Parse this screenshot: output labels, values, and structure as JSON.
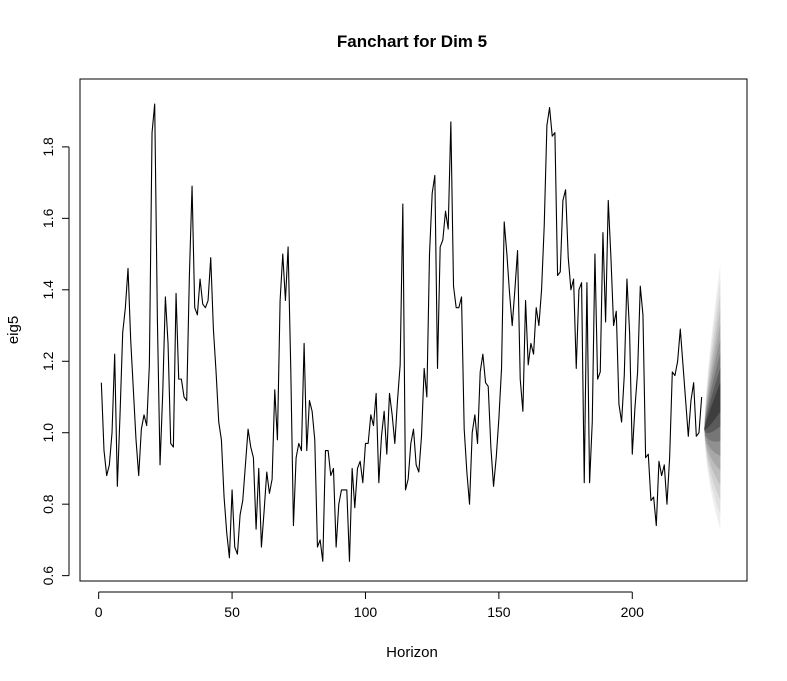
{
  "chart_data": {
    "type": "line",
    "title": "Fanchart for Dim 5",
    "xlabel": "Horizon",
    "ylabel": "eig5",
    "xlim": [
      -7,
      243
    ],
    "ylim": [
      0.585,
      1.99
    ],
    "x_ticks": [
      0,
      50,
      100,
      150,
      200
    ],
    "y_ticks": [
      0.6,
      0.8,
      1.0,
      1.2,
      1.4,
      1.6,
      1.8
    ],
    "x_tick_labels": [
      "0",
      "50",
      "100",
      "150",
      "200"
    ],
    "y_tick_labels": [
      "0.6",
      "0.8",
      "1.0",
      "1.2",
      "1.4",
      "1.6",
      "1.8"
    ],
    "grid": false,
    "series": [
      {
        "color": "#000000",
        "x_start": 1,
        "values": [
          1.14,
          0.95,
          0.88,
          0.91,
          1.0,
          1.22,
          0.85,
          1.05,
          1.28,
          1.35,
          1.46,
          1.26,
          1.12,
          0.98,
          0.88,
          1.01,
          1.05,
          1.02,
          1.19,
          1.84,
          1.92,
          1.32,
          0.91,
          1.11,
          1.38,
          1.25,
          0.97,
          0.96,
          1.39,
          1.15,
          1.15,
          1.1,
          1.09,
          1.44,
          1.69,
          1.35,
          1.33,
          1.43,
          1.36,
          1.35,
          1.37,
          1.49,
          1.29,
          1.17,
          1.03,
          0.98,
          0.82,
          0.72,
          0.65,
          0.84,
          0.68,
          0.66,
          0.77,
          0.81,
          0.91,
          1.01,
          0.96,
          0.93,
          0.73,
          0.9,
          0.68,
          0.78,
          0.89,
          0.83,
          0.87,
          1.12,
          0.98,
          1.37,
          1.5,
          1.37,
          1.52,
          1.18,
          0.74,
          0.93,
          0.97,
          0.95,
          1.25,
          0.95,
          1.09,
          1.06,
          0.98,
          0.68,
          0.7,
          0.64,
          0.95,
          0.95,
          0.88,
          0.9,
          0.68,
          0.8,
          0.84,
          0.84,
          0.84,
          0.64,
          0.9,
          0.79,
          0.9,
          0.92,
          0.86,
          0.97,
          0.97,
          1.05,
          1.02,
          1.11,
          0.86,
          0.99,
          1.06,
          0.94,
          1.11,
          1.05,
          0.97,
          1.09,
          1.19,
          1.64,
          0.84,
          0.87,
          0.97,
          1.01,
          0.91,
          0.89,
          0.99,
          1.18,
          1.1,
          1.5,
          1.67,
          1.72,
          1.18,
          1.52,
          1.54,
          1.62,
          1.57,
          1.87,
          1.41,
          1.35,
          1.35,
          1.38,
          1.01,
          0.89,
          0.8,
          1.0,
          1.05,
          0.97,
          1.17,
          1.22,
          1.14,
          1.13,
          0.96,
          0.85,
          0.93,
          1.04,
          1.18,
          1.59,
          1.5,
          1.39,
          1.3,
          1.4,
          1.51,
          1.15,
          1.06,
          1.37,
          1.19,
          1.25,
          1.22,
          1.35,
          1.3,
          1.4,
          1.58,
          1.86,
          1.91,
          1.83,
          1.84,
          1.44,
          1.45,
          1.65,
          1.68,
          1.49,
          1.4,
          1.43,
          1.18,
          1.4,
          1.42,
          0.86,
          1.42,
          0.86,
          1.03,
          1.5,
          1.15,
          1.17,
          1.56,
          1.31,
          1.65,
          1.49,
          1.3,
          1.34,
          1.08,
          1.03,
          1.16,
          1.43,
          1.28,
          0.94,
          1.07,
          1.17,
          1.41,
          1.33,
          0.93,
          0.94,
          0.81,
          0.82,
          0.74,
          0.92,
          0.88,
          0.91,
          0.8,
          0.93,
          1.17,
          1.16,
          1.2,
          1.29,
          1.19,
          1.09,
          0.99,
          1.09,
          1.14,
          0.99,
          1.0,
          1.1
        ]
      }
    ],
    "fan": {
      "type": "area",
      "x_start": 227,
      "x_end": 233,
      "center_start": 1.01,
      "center_end": 1.1,
      "outer_half_width": 0.37,
      "bands": 9,
      "colors": [
        "#eeeeee",
        "#e0e0e0",
        "#d0d0d0",
        "#bdbdbd",
        "#a8a8a8",
        "#909090",
        "#767676",
        "#5a5a5a",
        "#3e3e3e"
      ]
    }
  }
}
